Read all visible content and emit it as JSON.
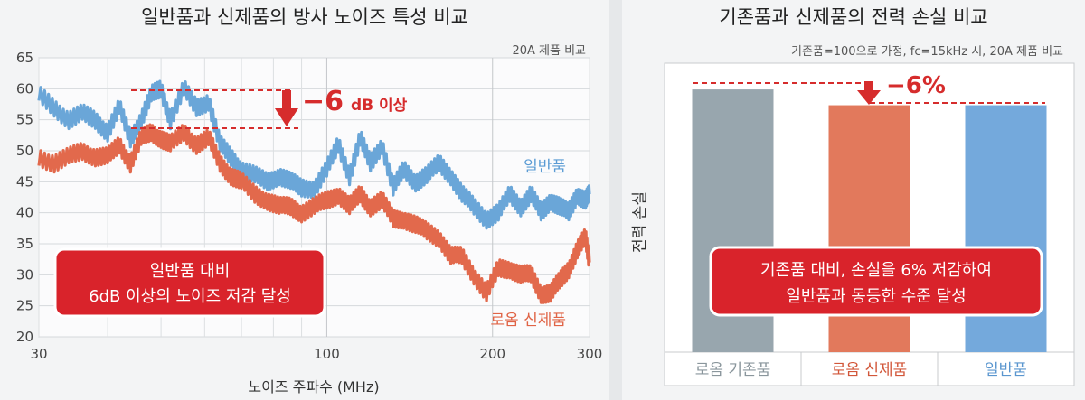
{
  "chart_data": [
    {
      "type": "line",
      "title": "일반품과 신제품의 방사 노이즈 특성 비교",
      "subtitle": "20A 제품 비교",
      "xlabel": "노이즈 주파수 (MHz)",
      "ylabel": "",
      "x_scale": "log",
      "xlim": [
        30,
        300
      ],
      "ylim": [
        20,
        65
      ],
      "x_ticks": [
        "30",
        "100",
        "200",
        "300"
      ],
      "y_ticks": [
        "20",
        "25",
        "30",
        "35",
        "40",
        "45",
        "50",
        "55",
        "60",
        "65"
      ],
      "grid": true,
      "x": [
        30,
        32,
        34,
        36,
        38,
        40,
        42,
        44,
        46,
        48,
        50,
        52,
        55,
        58,
        61,
        64,
        67,
        70,
        74,
        78,
        82,
        86,
        90,
        95,
        100,
        105,
        110,
        115,
        120,
        126,
        132,
        138,
        145,
        152,
        160,
        168,
        176,
        185,
        195,
        205,
        215,
        225,
        235,
        245,
        255,
        265,
        275,
        285,
        295,
        300
      ],
      "series": [
        {
          "name": "일반품",
          "color": "#6aa6d8",
          "values": [
            59,
            57,
            55,
            56,
            55,
            53,
            57,
            52,
            55,
            59,
            60,
            55,
            60,
            57,
            58,
            51,
            49,
            47,
            46,
            45,
            46,
            45,
            44,
            44,
            47,
            51,
            46,
            52,
            48,
            51,
            44,
            47,
            45,
            46,
            48,
            46,
            43,
            41,
            39,
            40,
            43,
            41,
            43,
            40,
            42,
            41,
            40,
            43,
            42,
            43
          ]
        },
        {
          "name": "로옴 신제품",
          "color": "#e2694c",
          "values": [
            49,
            48,
            49,
            50,
            49,
            49,
            51,
            48,
            52,
            53,
            52,
            51,
            53,
            51,
            52,
            48,
            46,
            45,
            43,
            42,
            41,
            41,
            40,
            41,
            42,
            43,
            41,
            43,
            41,
            42,
            39,
            39,
            38,
            37,
            36,
            33,
            33,
            30,
            27,
            31,
            31,
            30,
            30,
            27,
            27,
            29,
            31,
            34,
            36,
            32
          ]
        }
      ],
      "annotations": {
        "delta_value": "−6",
        "delta_unit": "dB 이상",
        "callout_line1": "일반품 대비",
        "callout_line2": "6dB 이상의 노이즈 저감 달성",
        "label_normal": "일반품",
        "label_new": "로옴 신제품"
      }
    },
    {
      "type": "bar",
      "title": "기존품과 신제품의 전력 손실 비교",
      "subtitle": "기존품=100으로 가정, fc=15kHz 시, 20A 제품 비교",
      "xlabel": "",
      "ylabel": "전력 손실",
      "ylim": [
        0,
        110
      ],
      "grid": false,
      "categories": [
        "로옴 기존품",
        "로옴 신제품",
        "일반품"
      ],
      "values": [
        100,
        94,
        94
      ],
      "colors": [
        "#98a6ae",
        "#e2795c",
        "#74a9dc"
      ],
      "category_label_colors": [
        "#8a969c",
        "#d2573a",
        "#5a96cf"
      ],
      "annotations": {
        "delta": "−6%",
        "callout_line1": "기존품 대비, 손실을 6% 저감하여",
        "callout_line2": "일반품과 동등한 수준 달성"
      }
    }
  ]
}
